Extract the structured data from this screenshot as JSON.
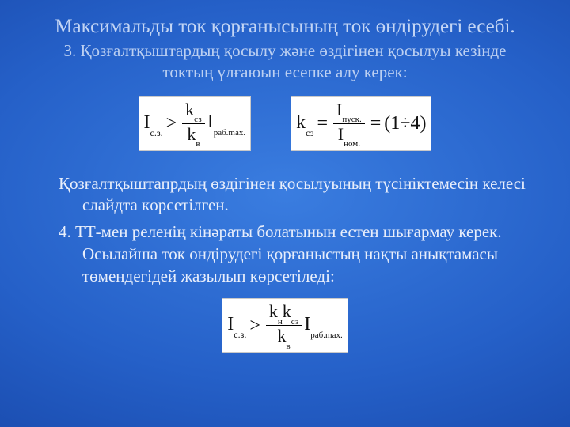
{
  "title": "Максимальды ток қорғанысының ток өндірудегі есебі.",
  "subtitle": "3. Қозғалтқыштардың қосылу және өздігінен қосылуы кезінде токтың ұлғаюын есепке алу керек:",
  "body1": "Қозғалтқыштапрдың өздігінен қосылуының түсініктемесін келесі слайдта көрсетілген.",
  "body2": "4. ТТ-мен реленің кінәраты болатынын естен шығармау керек. Осылайша ток өндірудегі қорғаныстың нақты анықтамасы төмендегідей жазылып көрсетіледі:",
  "formula1": {
    "lhs_sym": "I",
    "lhs_sub": "с.з.",
    "op": ">",
    "frac_num_sym": "k",
    "frac_num_sub": "сз",
    "frac_den_sym": "k",
    "frac_den_sub": "в",
    "tail_sym": "I",
    "tail_sub": "раб.max."
  },
  "formula2": {
    "lhs_sym": "k",
    "lhs_sub": "сз",
    "eq": "=",
    "frac_num_sym": "I",
    "frac_num_sub": "пуск.",
    "frac_den_sym": "I",
    "frac_den_sub": "ном.",
    "eq2": "=",
    "rhs": "(1÷4)"
  },
  "formula3": {
    "lhs_sym": "I",
    "lhs_sub": "с.з.",
    "op": ">",
    "num1_sym": "k",
    "num1_sub": "н",
    "num2_sym": "k",
    "num2_sub": "сз",
    "den_sym": "k",
    "den_sub": "в",
    "tail_sym": "I",
    "tail_sub": "раб.max."
  }
}
